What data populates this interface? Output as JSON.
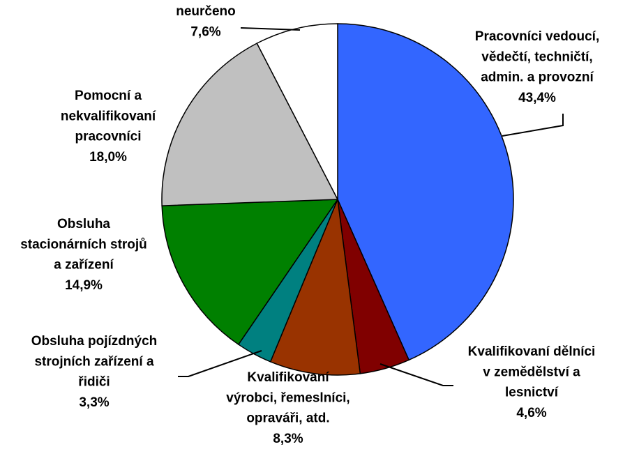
{
  "chart_data": {
    "type": "pie",
    "categories": [
      "Pracovníci vedoucí,\nvědečtí, techničtí,\nadmin. a provozní",
      "Kvalifikovaní dělníci\nv zemědělství a\nlesnictví",
      "Kvalifikovaní\nvýrobci, řemeslníci,\nopraváři, atd.",
      "Obsluha pojízdných\nstrojních zařízení a\nřidiči",
      "Obsluha\nstacionárních strojů\na zařízení",
      "Pomocní a\nnekvalifikovaní\npracovníci",
      "neurčeno"
    ],
    "values": [
      43.4,
      4.6,
      8.3,
      3.3,
      14.9,
      18.0,
      7.6
    ],
    "value_labels": [
      "43,4%",
      "4,6%",
      "8,3%",
      "3,3%",
      "14,9%",
      "18,0%",
      "7,6%"
    ],
    "colors": [
      "#3366ff",
      "#800000",
      "#993300",
      "#008080",
      "#008000",
      "#c0c0c0",
      "#ffffff"
    ]
  }
}
